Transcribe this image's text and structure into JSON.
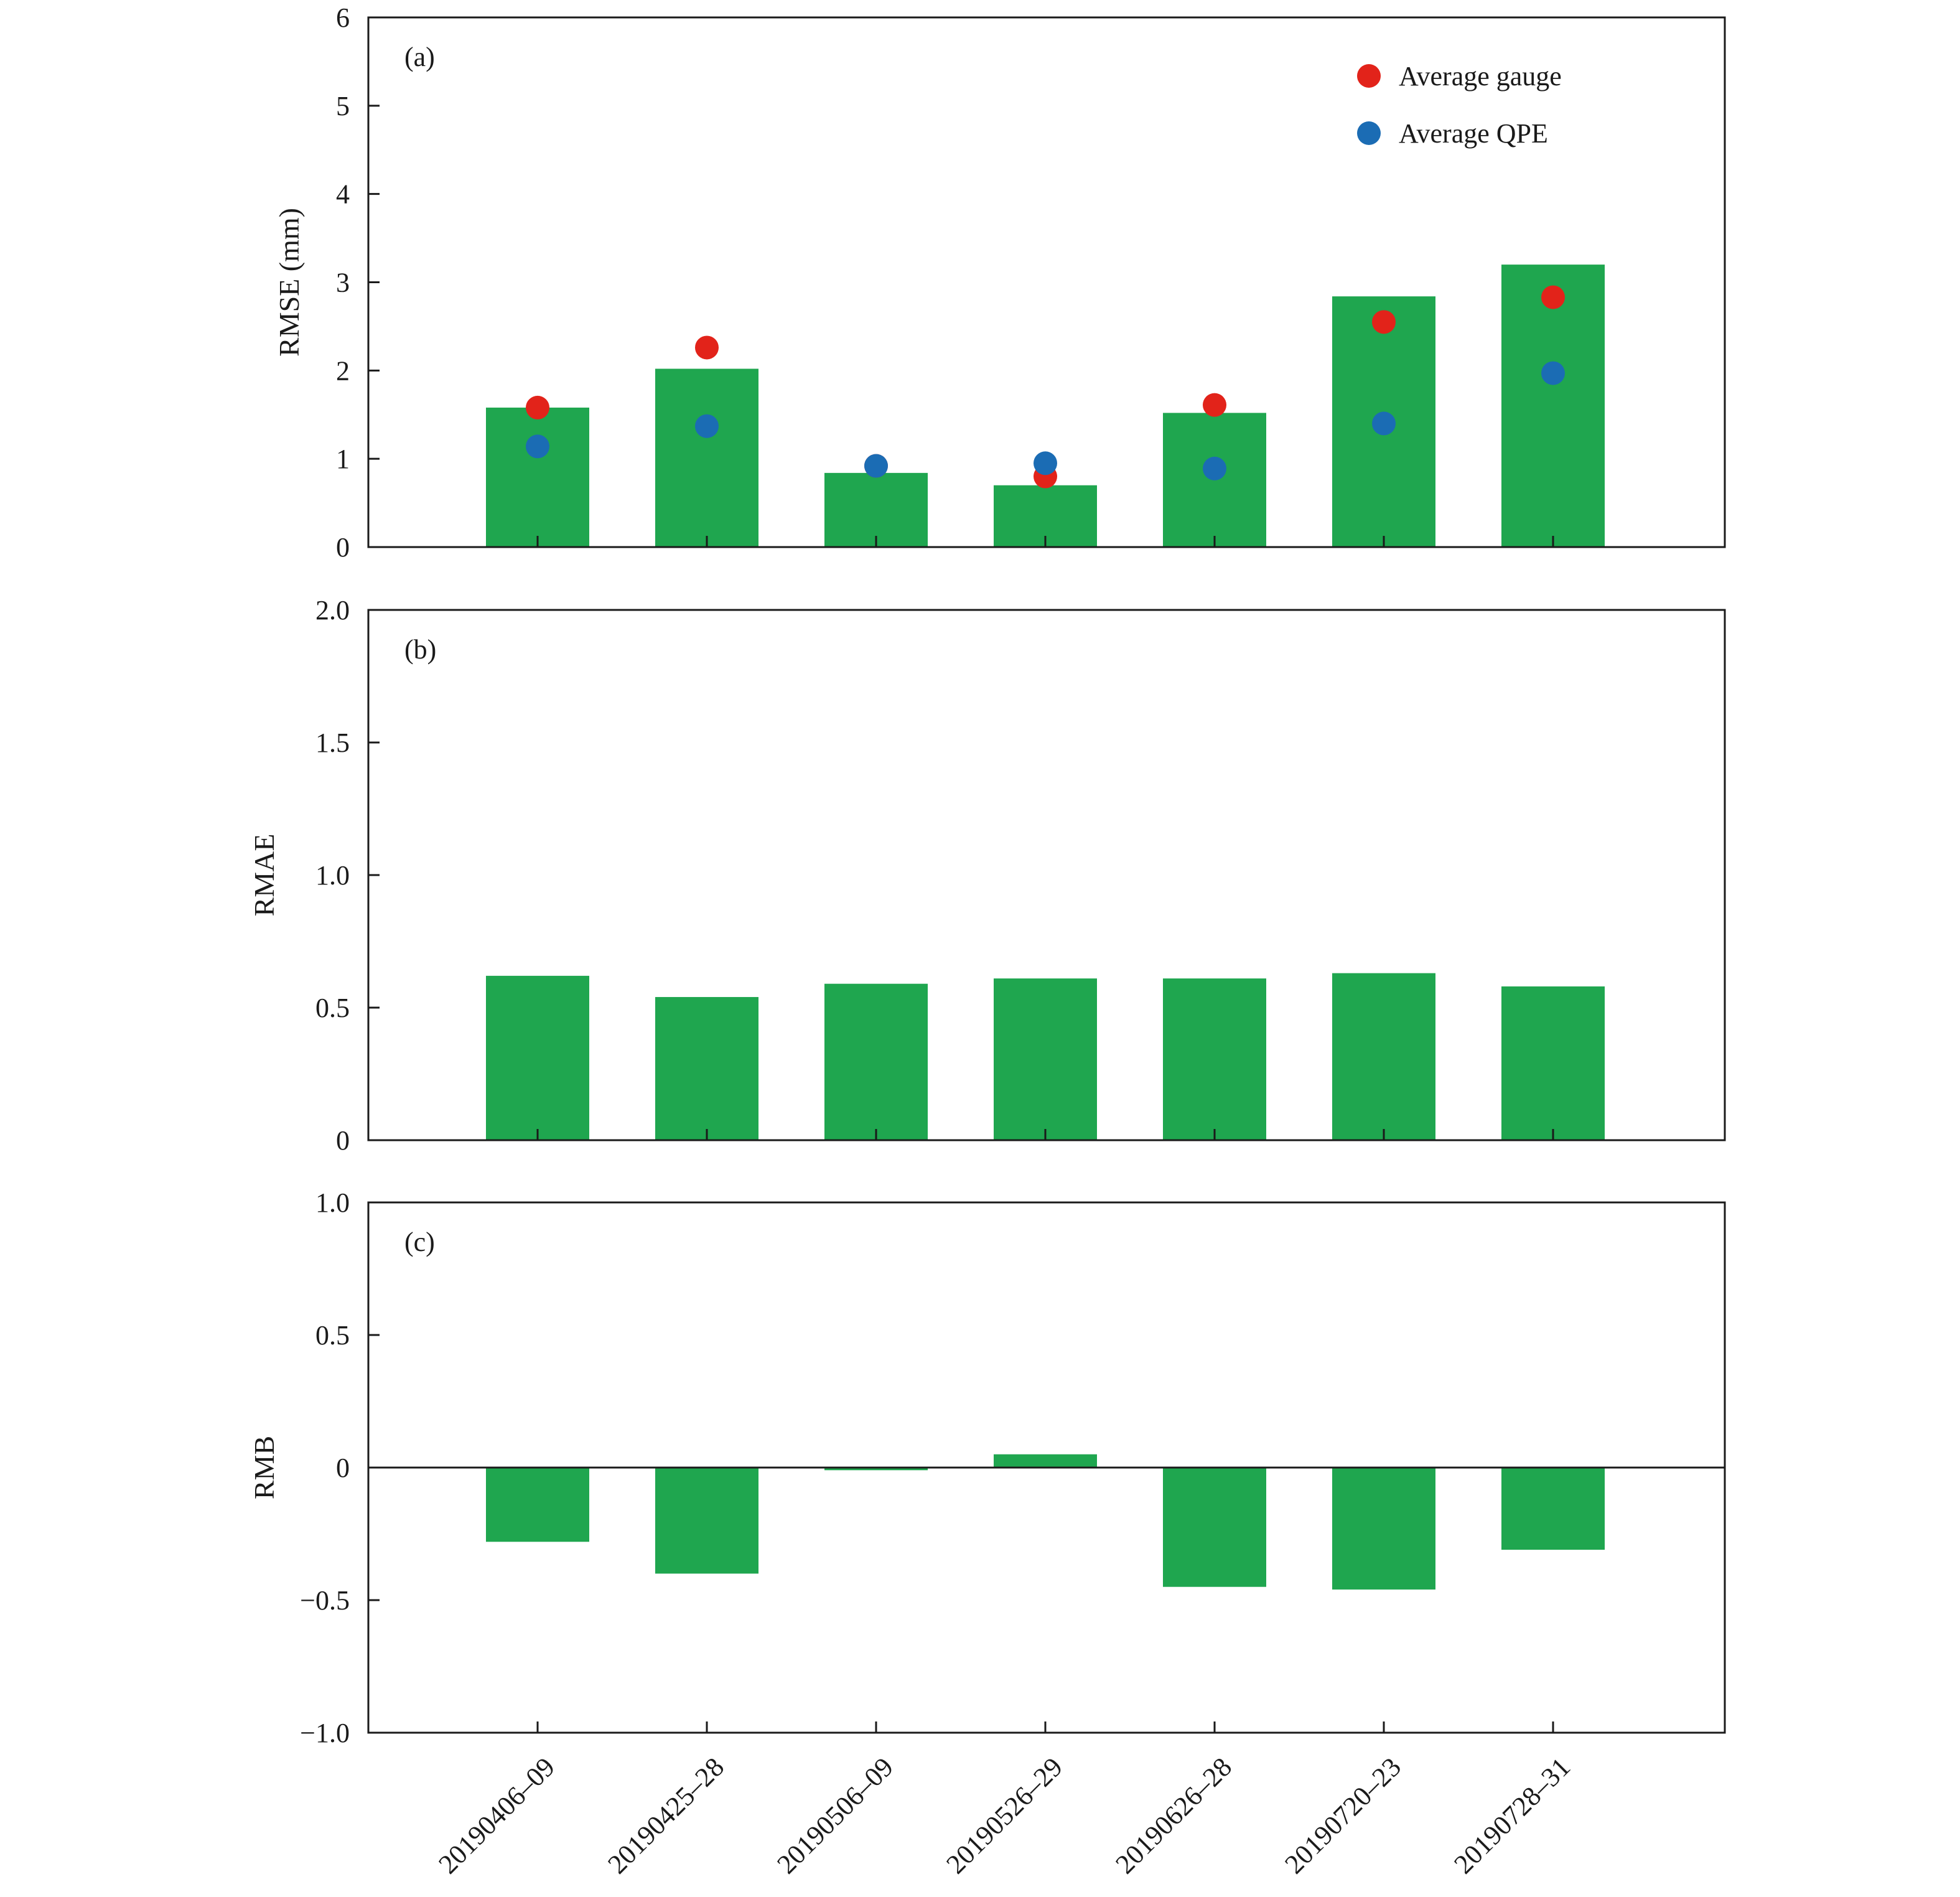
{
  "chart_data": {
    "type": "bar",
    "categories": [
      "20190406–09",
      "20190425–28",
      "20190506–09",
      "20190526–29",
      "20190626–28",
      "20190720–23",
      "20190728–31"
    ],
    "bar_color": "#1fa64f",
    "panels": [
      {
        "id": "a",
        "panel_label": "(a)",
        "ylabel": "RMSE (mm)",
        "ylim": [
          0,
          6
        ],
        "yticks": [
          0,
          1,
          2,
          3,
          4,
          5,
          6
        ],
        "ytick_labels": [
          "0",
          "1",
          "2",
          "3",
          "4",
          "5",
          "6"
        ],
        "values": [
          1.58,
          2.02,
          0.84,
          0.7,
          1.52,
          2.84,
          3.2
        ],
        "scatter_series": [
          {
            "name": "Average gauge",
            "color": "#e2231a",
            "values": [
              1.58,
              2.26,
              0.92,
              0.8,
              1.61,
              2.55,
              2.83
            ]
          },
          {
            "name": "Average QPE",
            "color": "#1b6cb4",
            "values": [
              1.14,
              1.37,
              0.92,
              0.95,
              0.89,
              1.4,
              1.97
            ]
          }
        ],
        "legend": "top-right"
      },
      {
        "id": "b",
        "panel_label": "(b)",
        "ylabel": "RMAE",
        "ylim": [
          0,
          2
        ],
        "yticks": [
          0,
          0.5,
          1,
          1.5,
          2
        ],
        "ytick_labels": [
          "0",
          "0.5",
          "1.0",
          "1.5",
          "2.0"
        ],
        "values": [
          0.62,
          0.54,
          0.59,
          0.61,
          0.61,
          0.63,
          0.58
        ]
      },
      {
        "id": "c",
        "panel_label": "(c)",
        "ylabel": "RMB",
        "ylim": [
          -1,
          1
        ],
        "yticks": [
          -1,
          -0.5,
          0,
          0.5,
          1
        ],
        "ytick_labels": [
          "−1.0",
          "−0.5",
          "0",
          "0.5",
          "1.0"
        ],
        "values": [
          -0.28,
          -0.4,
          -0.01,
          0.05,
          -0.45,
          -0.46,
          -0.31
        ],
        "zero_line": true
      }
    ]
  }
}
